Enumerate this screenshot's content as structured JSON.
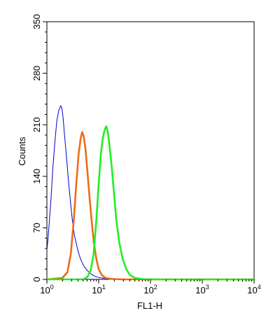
{
  "chart_data": {
    "type": "line",
    "xlabel": "FL1-H",
    "ylabel": "Counts",
    "xscale": "log",
    "xlim": [
      1,
      10000
    ],
    "ylim": [
      0,
      350
    ],
    "x_ticks": [
      {
        "value": 1,
        "base": "10",
        "exp": "0"
      },
      {
        "value": 10,
        "base": "10",
        "exp": "1"
      },
      {
        "value": 100,
        "base": "10",
        "exp": "2"
      },
      {
        "value": 1000,
        "base": "10",
        "exp": "3"
      },
      {
        "value": 10000,
        "base": "10",
        "exp": "4"
      }
    ],
    "y_ticks": [
      0,
      70,
      140,
      210,
      280,
      350
    ],
    "y_tick_labels": [
      "0",
      "70",
      "140",
      "210",
      "280",
      "350"
    ],
    "grid": false,
    "series": [
      {
        "color": "#0000cc",
        "x": [
          1.0,
          1.05,
          1.12,
          1.2,
          1.3,
          1.42,
          1.55,
          1.7,
          1.85,
          1.95,
          2.05,
          2.2,
          2.4,
          2.6,
          2.85,
          3.1,
          3.4,
          3.8,
          4.2,
          4.7,
          5.3,
          6.0,
          7.0,
          8.0,
          9.5,
          11,
          14,
          20,
          40,
          10000
        ],
        "y": [
          40,
          55,
          80,
          110,
          150,
          185,
          215,
          230,
          236,
          232,
          220,
          195,
          165,
          135,
          105,
          80,
          60,
          45,
          33,
          24,
          17,
          12,
          8,
          5,
          3,
          2,
          1,
          0.5,
          0,
          0
        ]
      },
      {
        "color": "#ee6a1a",
        "x": [
          1.0,
          2.0,
          2.5,
          2.9,
          3.3,
          3.7,
          4.1,
          4.5,
          4.8,
          5.1,
          5.5,
          6.0,
          6.6,
          7.3,
          8.0,
          9.0,
          10.0,
          11.5,
          13.5,
          16,
          20,
          30,
          10000
        ],
        "y": [
          0,
          2,
          10,
          35,
          80,
          130,
          170,
          192,
          200,
          195,
          180,
          150,
          115,
          80,
          52,
          28,
          14,
          6,
          2,
          1,
          0.5,
          0,
          0
        ]
      },
      {
        "color": "#22ee22",
        "x": [
          1.0,
          5.0,
          6.0,
          7.0,
          8.0,
          9.0,
          10.0,
          11.0,
          12.0,
          13.0,
          14.0,
          15.0,
          16.0,
          18.0,
          20.0,
          22.0,
          25.0,
          29.0,
          34.0,
          40.0,
          50.0,
          70.0,
          100.0,
          10000
        ],
        "y": [
          0,
          0,
          3,
          12,
          35,
          80,
          130,
          170,
          192,
          203,
          208,
          200,
          185,
          150,
          112,
          80,
          50,
          28,
          14,
          6,
          2,
          0.5,
          0,
          0
        ]
      }
    ]
  }
}
